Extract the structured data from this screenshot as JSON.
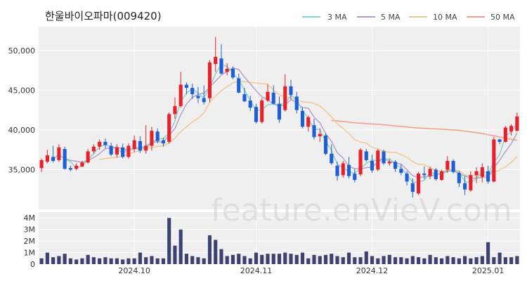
{
  "watermark": "feature.enVieV.com",
  "colors": {
    "up": "#e8202a",
    "down": "#1f5fd6",
    "volume": "#3d4270",
    "ma3": "#7fd3c8",
    "ma5": "#b79ac8",
    "ma10": "#f2c58f",
    "ma50": "#f2a08a",
    "grid": "#ffffff",
    "plot_bg": "#efefef"
  },
  "chart_data": [
    {
      "type": "candlestick",
      "title": "한울바이오파마(009420)",
      "legend": {
        "placement": "top-right",
        "entries": [
          "3 MA",
          "5 MA",
          "10 MA",
          "50 MA"
        ]
      },
      "ylim": [
        30000,
        53000
      ],
      "y_ticks": [
        35000,
        40000,
        45000,
        50000
      ],
      "y_tick_labels": [
        "35,000",
        "40,000",
        "45,000",
        "50,000"
      ],
      "x_tick_labels": [
        {
          "label": "2024.10",
          "index": 16
        },
        {
          "label": "2024.11",
          "index": 37
        },
        {
          "label": "2024.12",
          "index": 57
        },
        {
          "label": "2025.01",
          "index": 77
        }
      ],
      "grid": true,
      "candles": [
        [
          35200,
          36400,
          34700,
          36200
        ],
        [
          36000,
          37500,
          35800,
          36800
        ],
        [
          36600,
          38000,
          35900,
          36100
        ],
        [
          36200,
          38200,
          36000,
          37800
        ],
        [
          37600,
          37900,
          35000,
          35100
        ],
        [
          35200,
          35500,
          34800,
          35000
        ],
        [
          35100,
          35800,
          34900,
          35500
        ],
        [
          35400,
          36100,
          35300,
          35900
        ],
        [
          35900,
          37600,
          35800,
          37300
        ],
        [
          37300,
          38200,
          37000,
          37900
        ],
        [
          37900,
          38800,
          37500,
          38500
        ],
        [
          38500,
          38900,
          37700,
          38100
        ],
        [
          38000,
          38400,
          36700,
          36900
        ],
        [
          36900,
          38200,
          36500,
          37800
        ],
        [
          37800,
          38300,
          36400,
          36600
        ],
        [
          36600,
          38300,
          36400,
          38000
        ],
        [
          37600,
          39300,
          37200,
          38700
        ],
        [
          38600,
          39200,
          37100,
          37400
        ],
        [
          37400,
          40600,
          37000,
          38000
        ],
        [
          38000,
          40400,
          37400,
          39900
        ],
        [
          39800,
          40200,
          38300,
          38600
        ],
        [
          38700,
          39000,
          37900,
          38300
        ],
        [
          38500,
          42200,
          38300,
          42000
        ],
        [
          42000,
          44100,
          41400,
          43000
        ],
        [
          43000,
          47300,
          42800,
          45700
        ],
        [
          45700,
          46000,
          44500,
          45300
        ],
        [
          45300,
          45800,
          43900,
          44500
        ],
        [
          44300,
          45400,
          43400,
          44000
        ],
        [
          44000,
          45600,
          43200,
          43500
        ],
        [
          44000,
          48800,
          43500,
          48500
        ],
        [
          48300,
          51700,
          47300,
          49200
        ],
        [
          49000,
          50800,
          47000,
          47100
        ],
        [
          47300,
          48400,
          46900,
          47700
        ],
        [
          47700,
          48000,
          46400,
          46600
        ],
        [
          46500,
          47100,
          44600,
          44700
        ],
        [
          44500,
          45300,
          43500,
          43600
        ],
        [
          43700,
          44300,
          42400,
          42800
        ],
        [
          42900,
          43300,
          40800,
          41000
        ],
        [
          41000,
          44000,
          40800,
          43700
        ],
        [
          43700,
          45700,
          43500,
          44800
        ],
        [
          44700,
          45600,
          43200,
          43300
        ],
        [
          43300,
          44200,
          40900,
          41300
        ],
        [
          42500,
          47000,
          42300,
          45500
        ],
        [
          45500,
          46300,
          43900,
          44400
        ],
        [
          44200,
          44800,
          42100,
          42500
        ],
        [
          42400,
          42800,
          40200,
          40400
        ],
        [
          40400,
          41800,
          39800,
          41600
        ],
        [
          40600,
          41400,
          38800,
          39100
        ],
        [
          39200,
          40200,
          38500,
          39500
        ],
        [
          39300,
          39600,
          36800,
          37000
        ],
        [
          37000,
          38200,
          35600,
          35800
        ],
        [
          35500,
          36000,
          33600,
          34200
        ],
        [
          34300,
          36100,
          34000,
          35800
        ],
        [
          35600,
          36600,
          33900,
          34200
        ],
        [
          34500,
          35100,
          33400,
          33700
        ],
        [
          34400,
          37700,
          34200,
          37500
        ],
        [
          37300,
          37600,
          36000,
          36200
        ],
        [
          36100,
          36900,
          34600,
          34900
        ],
        [
          35000,
          37600,
          34800,
          37400
        ],
        [
          37300,
          37500,
          35600,
          35800
        ],
        [
          35800,
          36300,
          35500,
          36000
        ],
        [
          36000,
          36200,
          34700,
          35100
        ],
        [
          35100,
          35700,
          34300,
          34600
        ],
        [
          34500,
          34800,
          33000,
          33500
        ],
        [
          33300,
          33900,
          31500,
          32200
        ],
        [
          32000,
          34700,
          31800,
          34500
        ],
        [
          34500,
          35400,
          33800,
          34300
        ],
        [
          34200,
          35400,
          33800,
          35100
        ],
        [
          35000,
          35200,
          33600,
          33800
        ],
        [
          33700,
          35000,
          33600,
          34800
        ],
        [
          35000,
          36700,
          34600,
          36100
        ],
        [
          36100,
          36300,
          34500,
          34700
        ],
        [
          34600,
          34800,
          32800,
          33300
        ],
        [
          33300,
          34200,
          31800,
          32500
        ],
        [
          32400,
          34800,
          32200,
          34300
        ],
        [
          34300,
          35300,
          33300,
          34800
        ],
        [
          34100,
          35800,
          33400,
          35300
        ],
        [
          34800,
          35500,
          33200,
          33500
        ],
        [
          33500,
          39100,
          33400,
          38800
        ],
        [
          38800,
          38900,
          38200,
          38500
        ],
        [
          38500,
          40500,
          38400,
          40300
        ],
        [
          39800,
          40700,
          39300,
          40500
        ],
        [
          39900,
          42200,
          39800,
          41700
        ]
      ],
      "ma_series": [
        {
          "name": "3 MA",
          "values": [
            null,
            null,
            36367,
            36900,
            36333,
            36000,
            35200,
            35467,
            36233,
            37033,
            37900,
            38167,
            37833,
            37600,
            37100,
            37467,
            37767,
            37700,
            38033,
            38433,
            38833,
            38933,
            39600,
            41100,
            43567,
            44667,
            45167,
            44600,
            44000,
            45333,
            47067,
            48267,
            48000,
            47133,
            46333,
            45000,
            43700,
            42467,
            42500,
            43167,
            43267,
            43133,
            43367,
            44400,
            43800,
            42433,
            41500,
            40067,
            40067,
            38533,
            37433,
            35667,
            35267,
            34733,
            34567,
            35133,
            35800,
            36200,
            36167,
            36033,
            36400,
            35633,
            35233,
            34400,
            33433,
            33400,
            33667,
            34633,
            34400,
            34567,
            34900,
            34867,
            34700,
            33500,
            33367,
            33867,
            34800,
            34533,
            35867,
            36933,
            39200,
            39767,
            40833
          ]
        },
        {
          "name": "5 MA",
          "values": [
            null,
            null,
            null,
            null,
            36400,
            36160,
            36060,
            35920,
            36160,
            36520,
            37020,
            37640,
            37740,
            37840,
            37560,
            37480,
            37600,
            37700,
            37740,
            38400,
            38520,
            38460,
            39360,
            40160,
            41920,
            43260,
            44100,
            44500,
            44600,
            45400,
            46140,
            46900,
            47380,
            47820,
            47600,
            46660,
            45800,
            44940,
            44160,
            43800,
            43240,
            43020,
            43120,
            43840,
            43400,
            42820,
            42740,
            41600,
            40900,
            39520,
            38580,
            37120,
            36460,
            35380,
            35140,
            35080,
            35260,
            35300,
            36000,
            36540,
            35980,
            35840,
            35680,
            35000,
            34240,
            34000,
            34100,
            34140,
            34360,
            34460,
            34800,
            34860,
            34500,
            34200,
            33960,
            33920,
            34040,
            34080,
            35260,
            36180,
            37280,
            38260,
            39640
          ]
        },
        {
          "name": "10 MA",
          "values": [
            null,
            null,
            null,
            null,
            null,
            null,
            null,
            null,
            null,
            null,
            36250,
            36410,
            36480,
            36550,
            36670,
            36950,
            37210,
            37400,
            37700,
            37760,
            37940,
            37980,
            38370,
            38970,
            39790,
            40390,
            41020,
            41470,
            42140,
            43490,
            44250,
            44950,
            45440,
            45940,
            46120,
            46060,
            45980,
            45920,
            45820,
            45760,
            45020,
            44440,
            44110,
            44000,
            43740,
            43540,
            43490,
            43340,
            43020,
            42380,
            41680,
            40780,
            40190,
            39540,
            38790,
            38480,
            38340,
            37820,
            37620,
            37350,
            37190,
            37190,
            36900,
            36560,
            35990,
            35680,
            35630,
            35220,
            34900,
            34750,
            34950,
            35030,
            34880,
            34320,
            34260,
            34290,
            34300,
            34300,
            34610,
            34960,
            35340,
            35940,
            36640
          ]
        },
        {
          "name": "50 MA",
          "values": [
            null,
            null,
            null,
            null,
            null,
            null,
            null,
            null,
            null,
            null,
            null,
            null,
            null,
            null,
            null,
            null,
            null,
            null,
            null,
            null,
            null,
            null,
            null,
            null,
            null,
            null,
            null,
            null,
            null,
            null,
            null,
            null,
            null,
            null,
            null,
            null,
            null,
            null,
            null,
            null,
            null,
            null,
            null,
            null,
            null,
            null,
            null,
            null,
            null,
            null,
            41200,
            41150,
            41050,
            40980,
            40900,
            40850,
            40800,
            40750,
            40720,
            40650,
            40580,
            40510,
            40450,
            40380,
            40300,
            40250,
            40200,
            40150,
            40120,
            40090,
            40050,
            40000,
            39950,
            39850,
            39760,
            39650,
            39550,
            39400,
            39260,
            39100,
            38980,
            38820,
            38700
          ]
        }
      ]
    },
    {
      "type": "bar",
      "series_name": "volume",
      "ylim": [
        0,
        4500000
      ],
      "y_ticks": [
        0,
        1000000,
        2000000,
        3000000,
        4000000
      ],
      "y_tick_labels": [
        "0",
        "1M",
        "2M",
        "3M",
        "4M"
      ],
      "values": [
        500000,
        1000000,
        600000,
        700000,
        900000,
        500000,
        400000,
        500000,
        800000,
        600000,
        500000,
        600000,
        500000,
        500000,
        400000,
        500000,
        500000,
        1000000,
        600000,
        700000,
        500000,
        500000,
        4000000,
        1600000,
        3000000,
        900000,
        700000,
        600000,
        500000,
        2500000,
        2100000,
        1300000,
        700000,
        800000,
        900000,
        700000,
        500000,
        1000000,
        800000,
        900000,
        900000,
        900000,
        1000000,
        900000,
        800000,
        1000000,
        500000,
        800000,
        700000,
        800000,
        900000,
        700000,
        600000,
        1000000,
        600000,
        600000,
        1100000,
        700000,
        500000,
        700000,
        800000,
        600000,
        600000,
        500000,
        700000,
        600000,
        500000,
        800000,
        600000,
        500000,
        700000,
        600000,
        500000,
        700000,
        500000,
        600000,
        700000,
        1900000,
        600000,
        1000000,
        600000,
        600000,
        700000
      ]
    }
  ]
}
